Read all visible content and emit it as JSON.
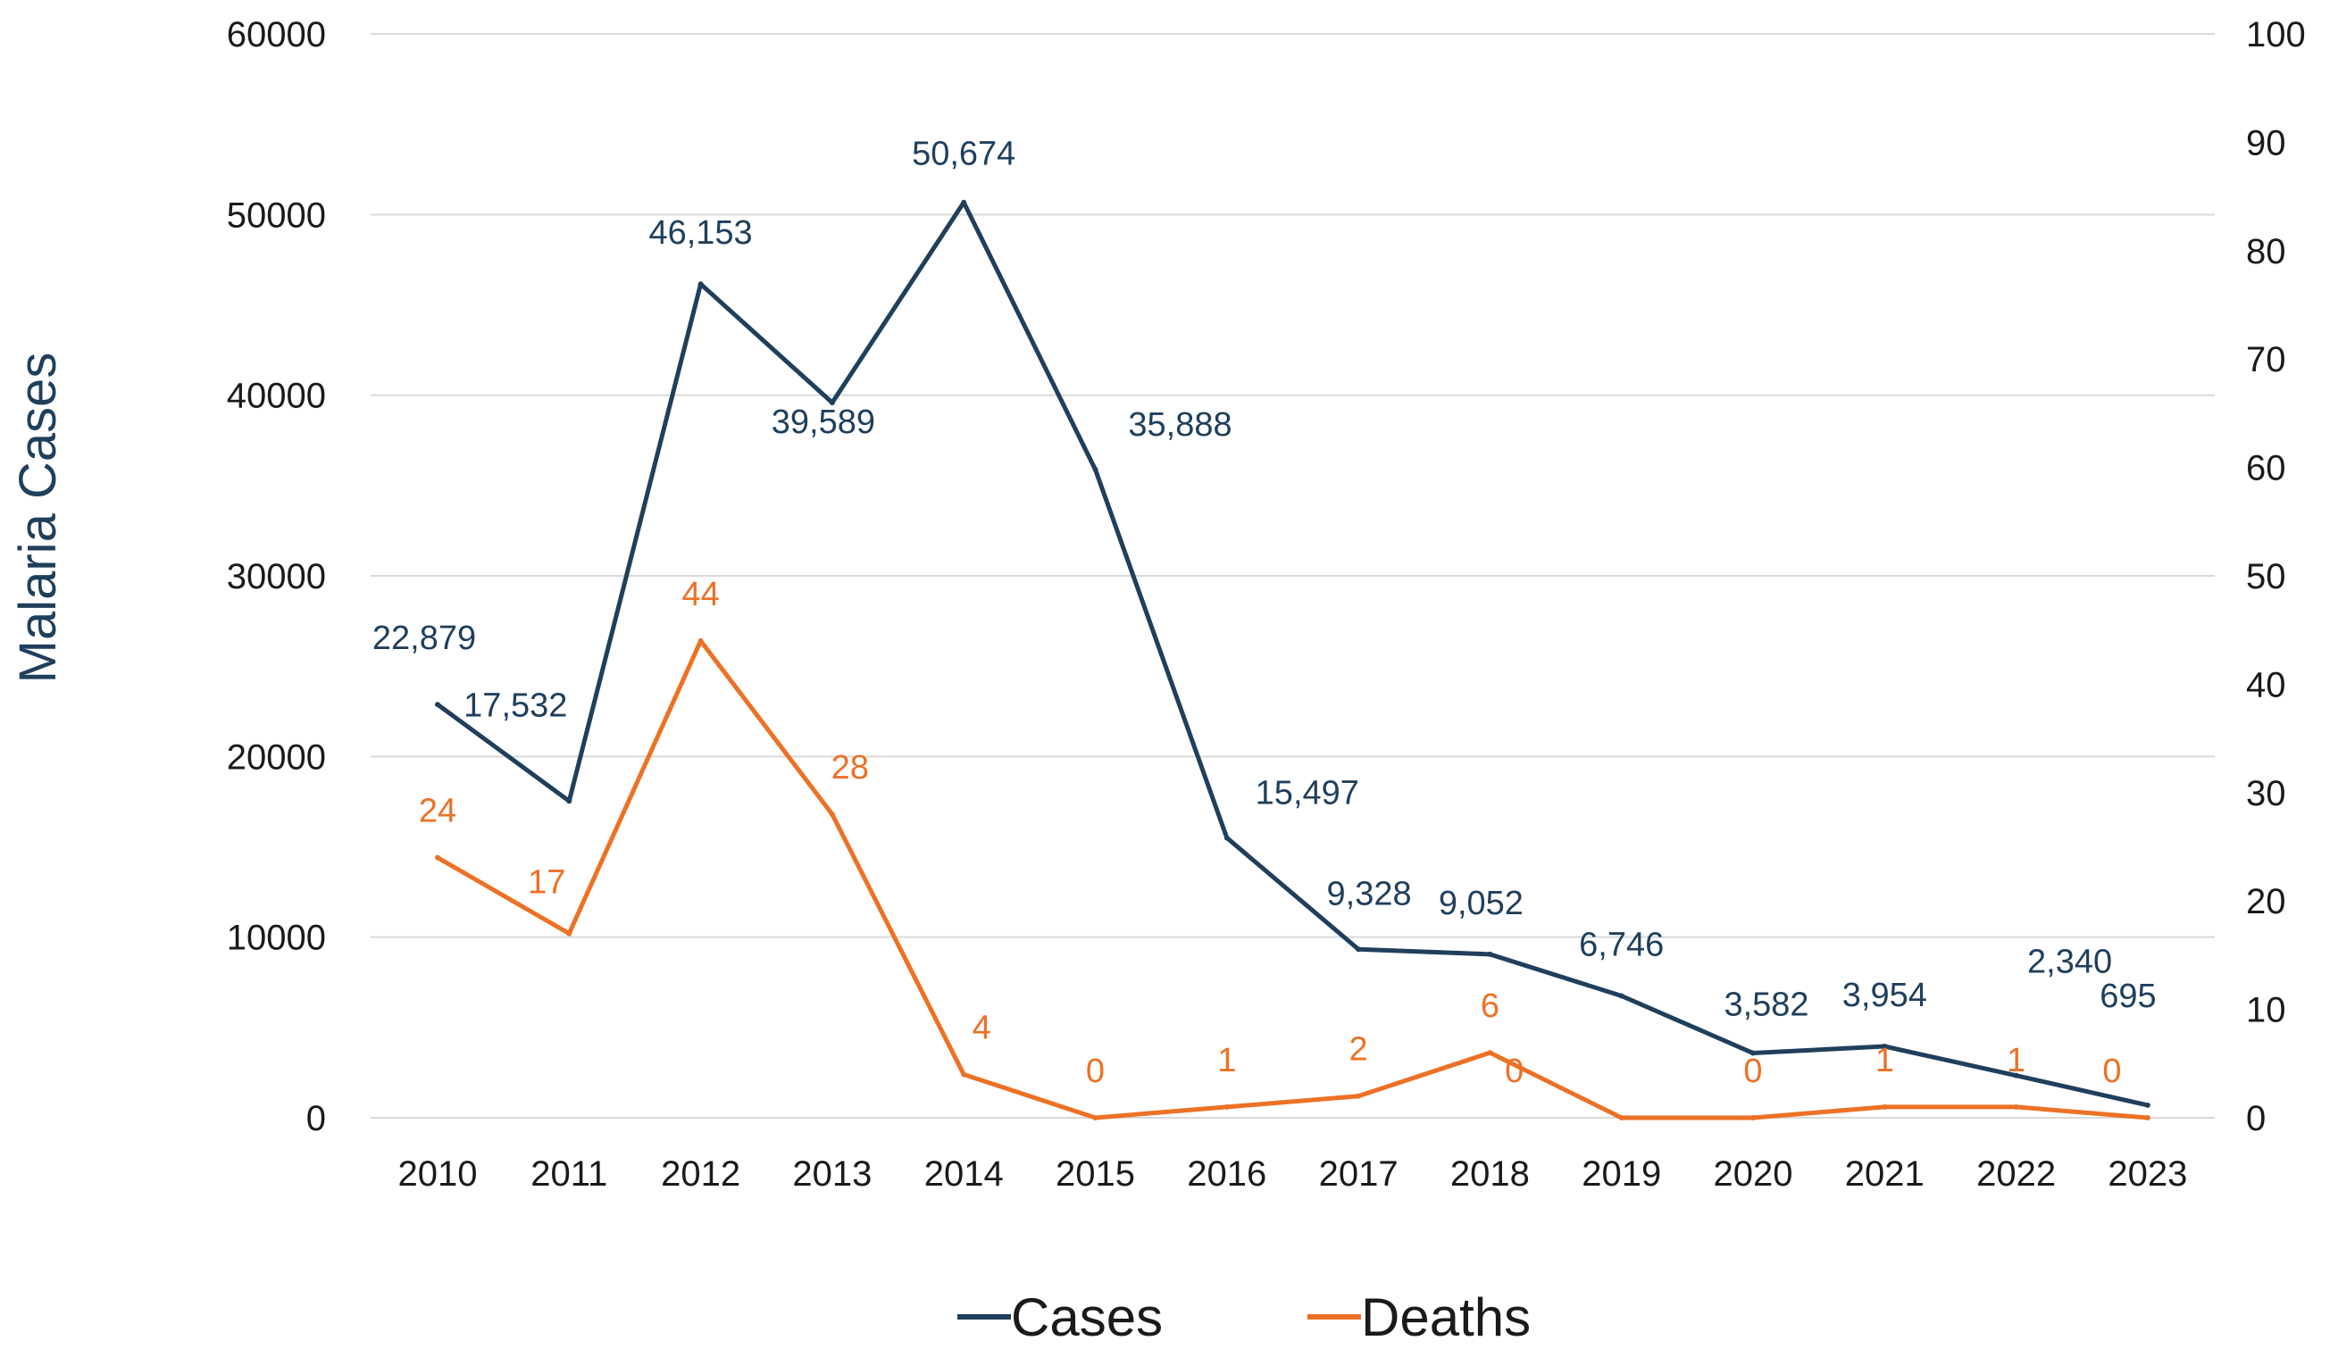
{
  "colors": {
    "cases": "#1f3f5c",
    "deaths": "#ed7125",
    "grid": "#d9d9d9",
    "axis_title": "#1f3f5c"
  },
  "chart_data": {
    "type": "line",
    "title": "",
    "xlabel": "",
    "ylabel": "Malaria Cases",
    "y2label": "",
    "categories": [
      "2010",
      "2011",
      "2012",
      "2013",
      "2014",
      "2015",
      "2016",
      "2017",
      "2018",
      "2019",
      "2020",
      "2021",
      "2022",
      "2023"
    ],
    "ylim": [
      0,
      60000
    ],
    "y_ticks": [
      "60000",
      "50000",
      "40000",
      "30000",
      "20000",
      "10000",
      "0"
    ],
    "y2lim": [
      0,
      100
    ],
    "y2_ticks": [
      "100",
      "90",
      "80",
      "70",
      "60",
      "50",
      "40",
      "30",
      "20",
      "10",
      "0"
    ],
    "grid": true,
    "legend_position": "bottom",
    "series": [
      {
        "name": "Cases",
        "axis": "left",
        "values": [
          22879,
          17532,
          46153,
          39589,
          50674,
          35888,
          15497,
          9328,
          9052,
          6746,
          3582,
          3954,
          2340,
          695
        ],
        "labels": [
          "22,879",
          "17,532",
          "46,153",
          "39,589",
          "50,674",
          "35,888",
          "15,497",
          "9,328",
          "9,052",
          "6,746",
          "3,582",
          "3,954",
          "2,340",
          "695"
        ]
      },
      {
        "name": "Deaths",
        "axis": "right",
        "values": [
          24,
          17,
          44,
          28,
          4,
          0,
          1,
          2,
          6,
          0,
          0,
          1,
          1,
          0
        ],
        "labels": [
          "24",
          "17",
          "44",
          "28",
          "4",
          "0",
          "1",
          "2",
          "6",
          "0",
          "0",
          "1",
          "1",
          "0"
        ]
      }
    ]
  }
}
